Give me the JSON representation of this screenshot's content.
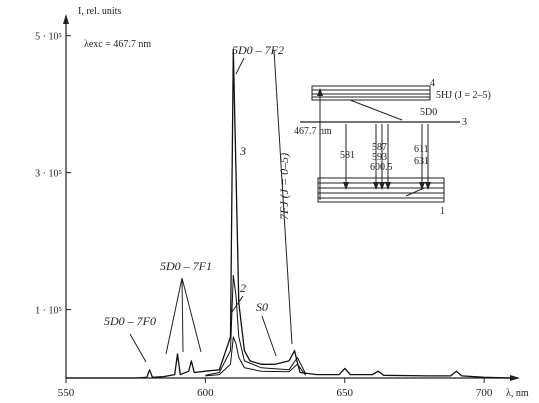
{
  "chart_data": {
    "type": "line",
    "title": "",
    "excitation_label": "λexc = 467.7 nm",
    "ylabel": "I, rel. units",
    "xlabel": "λ, nm",
    "xlim": [
      550,
      710
    ],
    "ylim": [
      0,
      520000
    ],
    "x_ticks": [
      {
        "value": 550,
        "label": "550"
      },
      {
        "value": 600,
        "label": "600"
      },
      {
        "value": 650,
        "label": "650"
      },
      {
        "value": 700,
        "label": "700"
      }
    ],
    "y_ticks": [
      {
        "value": 100000,
        "label": "1 · 10⁵"
      },
      {
        "value": 300000,
        "label": "3 · 10⁵"
      },
      {
        "value": 500000,
        "label": "5 · 10⁵"
      }
    ],
    "series": [
      {
        "name": "3",
        "x": [
          550,
          575,
          579,
          580,
          581,
          585,
          589,
          590,
          591,
          594,
          595,
          596,
          600,
          605,
          609,
          610,
          611,
          612,
          614,
          616,
          620,
          625,
          630,
          632,
          633,
          634,
          640,
          648,
          650,
          652,
          660,
          662,
          664,
          680,
          688,
          690,
          692,
          700,
          710
        ],
        "y": [
          0,
          0,
          1000,
          12000,
          1000,
          2000,
          5000,
          35000,
          5000,
          10000,
          25000,
          8000,
          10000,
          12000,
          60000,
          480000,
          300000,
          110000,
          40000,
          25000,
          20000,
          20000,
          25000,
          40000,
          22000,
          8000,
          5000,
          5000,
          14000,
          5000,
          5000,
          10000,
          4000,
          3000,
          3000,
          10000,
          3000,
          1000,
          0
        ]
      },
      {
        "name": "2",
        "x": [
          600,
          605,
          609,
          610,
          611,
          612,
          614,
          620,
          630,
          633,
          636
        ],
        "y": [
          4000,
          8000,
          40000,
          150000,
          120000,
          60000,
          25000,
          15000,
          12000,
          30000,
          6000
        ]
      },
      {
        "name": "1",
        "x": [
          600,
          605,
          609,
          610,
          611,
          612,
          614,
          620,
          630,
          633,
          636
        ],
        "y": [
          3000,
          5000,
          20000,
          60000,
          50000,
          30000,
          15000,
          10000,
          9000,
          20000,
          4000
        ]
      }
    ],
    "annotations": [
      {
        "text": "5D0 – 7F2",
        "at_x": 612
      },
      {
        "text": "5D0 – 7F1",
        "at_x": 592
      },
      {
        "text": "5D0 – 7F0",
        "at_x": 580
      },
      {
        "text": "7FJ (J = 0–5)",
        "at_x": 628
      },
      {
        "text": "S0",
        "at_x": 630
      },
      {
        "text": "3",
        "at_x": 612
      },
      {
        "text": "2",
        "at_x": 614
      }
    ],
    "inset": {
      "levels": [
        "5HJ (J = 2–5)",
        "5D0"
      ],
      "arrow_labels": [
        "467.7 nm",
        "581",
        "587",
        "593",
        "600.5",
        "611",
        "631"
      ],
      "level_numbers": [
        "4",
        "3",
        "1"
      ]
    },
    "grid": false
  }
}
